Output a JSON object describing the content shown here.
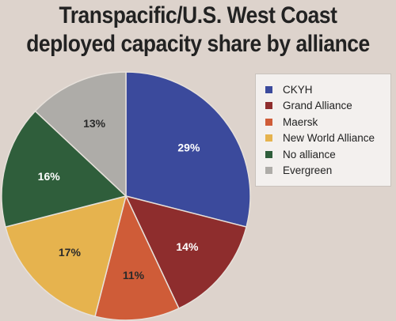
{
  "chart_data": {
    "type": "pie",
    "title_lines": [
      "Transpacific/U.S. West Coast",
      "deployed capacity share by alliance"
    ],
    "slices": [
      {
        "name": "CKYH",
        "value": 29,
        "label": "29%",
        "color": "#3b4a9c",
        "label_color": "#ffffff"
      },
      {
        "name": "Grand Alliance",
        "value": 14,
        "label": "14%",
        "color": "#8e2d2d",
        "label_color": "#ffffff"
      },
      {
        "name": "Maersk",
        "value": 11,
        "label": "11%",
        "color": "#cf5c38",
        "label_color": "#2a2a2a"
      },
      {
        "name": "New World Alliance",
        "value": 17,
        "label": "17%",
        "color": "#e6b34e",
        "label_color": "#2a2a2a"
      },
      {
        "name": "No alliance",
        "value": 16,
        "label": "16%",
        "color": "#2f5e3b",
        "label_color": "#ffffff"
      },
      {
        "name": "Evergreen",
        "value": 13,
        "label": "13%",
        "color": "#aeaca8",
        "label_color": "#2a2a2a"
      }
    ],
    "legend_position": "right"
  }
}
